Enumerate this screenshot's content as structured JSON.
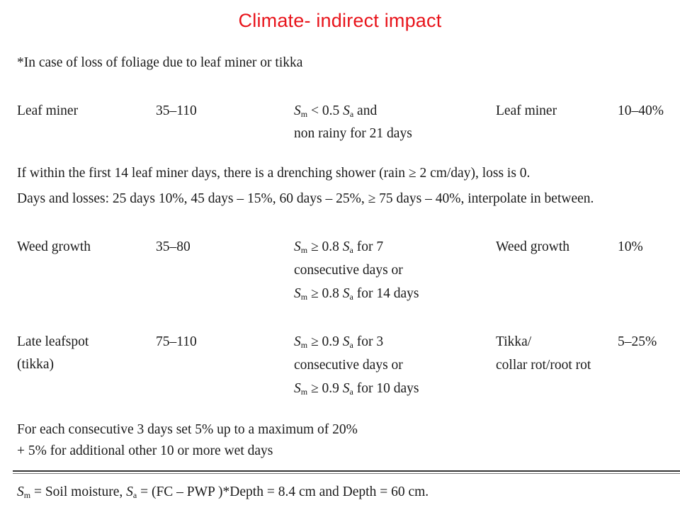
{
  "title": "Climate- indirect impact",
  "intro": "*In case of loss of foliage due to leaf miner or tikka",
  "rows": [
    {
      "name": [
        "Leaf miner"
      ],
      "days": "35–110",
      "condition": [
        {
          "sm": "S",
          "sm_sub": "m",
          "rest_pre": " < 0.5 ",
          "sa": "S",
          "sa_sub": "a",
          "rest": " and"
        },
        {
          "plain": "non rainy for 21 days"
        }
      ],
      "effect": [
        "Leaf miner"
      ],
      "loss": "10–40%"
    },
    {
      "name": [
        "Weed growth"
      ],
      "days": "35–80",
      "condition": [
        {
          "sm": "S",
          "sm_sub": "m",
          "rest_pre": " ≥ 0.8 ",
          "sa": "S",
          "sa_sub": "a",
          "rest": " for 7"
        },
        {
          "plain": "consecutive days or"
        },
        {
          "sm": "S",
          "sm_sub": "m",
          "rest_pre": " ≥ 0.8 ",
          "sa": "S",
          "sa_sub": "a",
          "rest": " for 14 days"
        }
      ],
      "effect": [
        "Weed growth"
      ],
      "loss": "10%"
    },
    {
      "name": [
        "Late leafspot",
        "(tikka)"
      ],
      "days": "75–110",
      "condition": [
        {
          "sm": "S",
          "sm_sub": "m",
          "rest_pre": " ≥ 0.9 ",
          "sa": "S",
          "sa_sub": "a",
          "rest": " for 3"
        },
        {
          "plain": "consecutive days or"
        },
        {
          "sm": "S",
          "sm_sub": "m",
          "rest_pre": " ≥ 0.9 ",
          "sa": "S",
          "sa_sub": "a",
          "rest": " for 10 days"
        }
      ],
      "effect": [
        "Tikka/",
        "collar rot/root rot"
      ],
      "loss": "5–25%"
    }
  ],
  "note_leafminer": [
    "If within the first 14 leaf miner days, there is a drenching shower (rain ≥ 2 cm/day), loss is 0.",
    "Days and losses: 25 days 10%, 45 days – 15%, 60 days – 25%, ≥ 75 days – 40%, interpolate in between."
  ],
  "note_tikka": [
    "For each consecutive 3 days set 5% up to a maximum of 20%",
    "+ 5% for additional other 10 or more wet days"
  ],
  "footer": {
    "sm": "S",
    "sm_sub": "m",
    "part1": " = Soil moisture, ",
    "sa": "S",
    "sa_sub": "a",
    "part2": " = (FC – PWP )*Depth = 8.4 cm and Depth = 60 cm."
  }
}
